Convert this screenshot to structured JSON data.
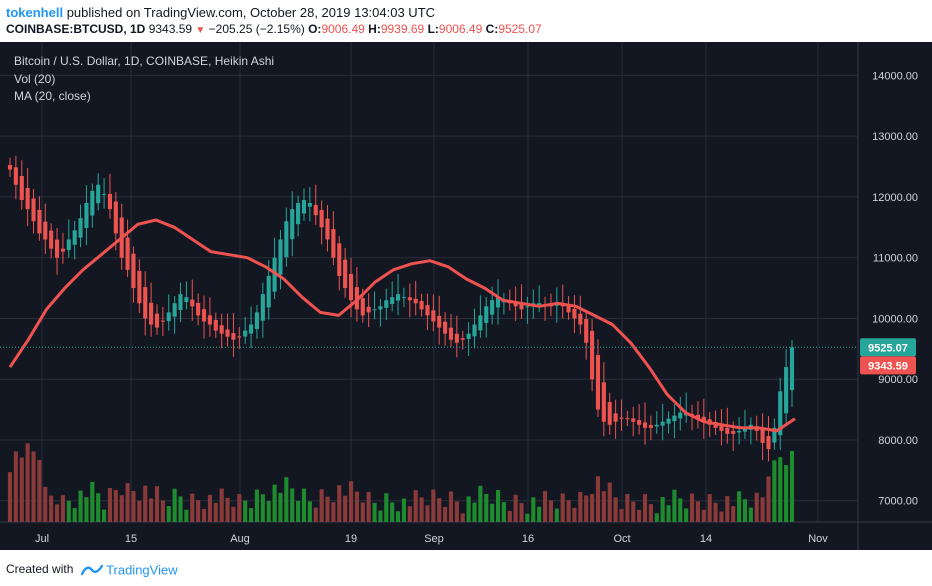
{
  "header": {
    "author": "tokenhell",
    "published": "published on TradingView.com, October 28, 2019 13:04:03 UTC",
    "symbol": "COINBASE:BTCUSD, 1D",
    "last": "9343.59",
    "change": "−205.25 (−2.15%)",
    "o_label": "O:",
    "o_value": "9006.49",
    "h_label": "H:",
    "h_value": "9939.69",
    "l_label": "L:",
    "l_value": "9006.49",
    "c_label": "C:",
    "c_value": "9525.07"
  },
  "legend": {
    "title": "Bitcoin / U.S. Dollar, 1D, COINBASE, Heikin Ashi",
    "vol": "Vol (20)",
    "ma": "MA (20, close)"
  },
  "footer": {
    "created": "Created with",
    "brand": "TradingView"
  },
  "colors": {
    "background": "#131722",
    "grid": "#2a2e39",
    "up": "#26a69a",
    "down": "#ef5350",
    "vol_up": "#1e8c2e",
    "vol_down": "#8b3a3a",
    "ma": "#ef5350",
    "text": "#d1d4dc"
  },
  "chart_data": {
    "type": "candlestick",
    "title": "Bitcoin / U.S. Dollar, 1D, COINBASE, Heikin Ashi",
    "y_axis": {
      "ticks": [
        "14000.00",
        "13000.00",
        "12000.00",
        "11000.00",
        "10000.00",
        "9000.00",
        "8000.00",
        "7000.00"
      ],
      "range": [
        6650,
        14550
      ]
    },
    "x_axis": {
      "ticks": [
        "Jul",
        "15",
        "Aug",
        "19",
        "Sep",
        "16",
        "Oct",
        "14",
        "Nov"
      ]
    },
    "price_labels": [
      {
        "value": 9525.07,
        "text": "9525.07",
        "color": "#26a69a"
      },
      {
        "value": 9343.59,
        "text": "9343.59",
        "color": "#ef5350"
      }
    ],
    "series": [
      {
        "name": "Vol (20)",
        "kind": "volume"
      },
      {
        "name": "MA (20, close)",
        "kind": "line"
      }
    ],
    "close": [
      12450,
      12200,
      11950,
      11800,
      11600,
      11400,
      11300,
      11150,
      11000,
      11100,
      11300,
      11450,
      11650,
      11900,
      12100,
      12200,
      12050,
      11800,
      11400,
      11000,
      10800,
      10500,
      10250,
      10000,
      9900,
      9850,
      9950,
      10100,
      10250,
      10400,
      10350,
      10200,
      10050,
      9950,
      9900,
      9800,
      9750,
      9700,
      9650,
      9700,
      9800,
      9900,
      10100,
      10400,
      10700,
      11000,
      11300,
      11600,
      11800,
      11900,
      11950,
      11900,
      11700,
      11500,
      11300,
      11000,
      10700,
      10500,
      10300,
      10150,
      10050,
      10100,
      10150,
      10200,
      10300,
      10350,
      10400,
      10350,
      10300,
      10250,
      10150,
      10050,
      9950,
      9850,
      9750,
      9650,
      9600,
      9650,
      9750,
      9900,
      10050,
      10200,
      10300,
      10350,
      10300,
      10250,
      10200,
      10150,
      10200,
      10250,
      10250,
      10200,
      10200,
      10250,
      10200,
      10100,
      10000,
      9900,
      9600,
      9000,
      8500,
      8300,
      8250,
      8300,
      8350,
      8350,
      8300,
      8250,
      8200,
      8200,
      8250,
      8300,
      8350,
      8400,
      8450,
      8450,
      8400,
      8350,
      8300,
      8250,
      8200,
      8150,
      8100,
      8100,
      8150,
      8200,
      8250,
      8150,
      7950,
      7850,
      8200,
      8800,
      9200,
      9525.07
    ],
    "ma": [
      9200,
      9650,
      10150,
      10500,
      10800,
      11050,
      11300,
      11550,
      11620,
      11500,
      11300,
      11100,
      11050,
      11000,
      10850,
      10650,
      10350,
      10100,
      10050,
      10300,
      10600,
      10800,
      10900,
      10950,
      10850,
      10650,
      10500,
      10300,
      10250,
      10200,
      10250,
      10200,
      10050,
      9900,
      9600,
      9200,
      8750,
      8450,
      8300,
      8250,
      8200,
      8200,
      8150,
      8350
    ],
    "volume_scale": "relative"
  }
}
